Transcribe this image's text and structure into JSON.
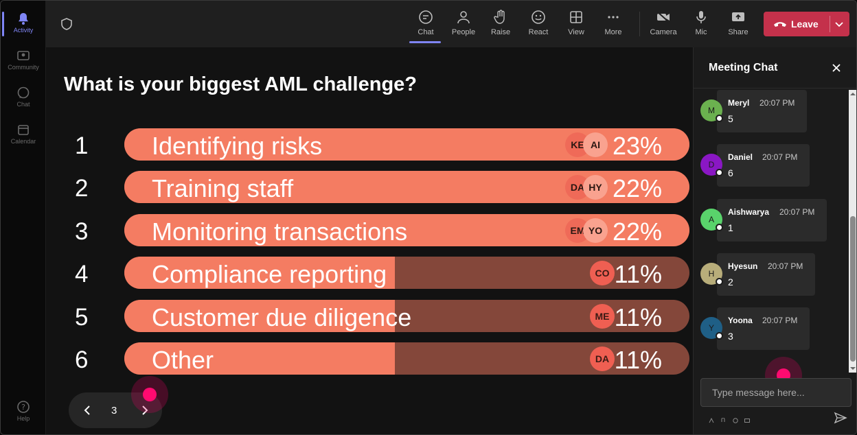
{
  "rail": {
    "items": [
      {
        "label": "Activity",
        "icon": "bell-icon",
        "active": true
      },
      {
        "label": "Community",
        "icon": "community-icon",
        "active": false
      },
      {
        "label": "Chat",
        "icon": "chat-icon",
        "active": false
      },
      {
        "label": "Calendar",
        "icon": "calendar-icon",
        "active": false
      }
    ],
    "help_label": "Help"
  },
  "topbar": {
    "chat": "Chat",
    "people": "People",
    "raise": "Raise",
    "react": "React",
    "view": "View",
    "more": "More",
    "camera": "Camera",
    "mic": "Mic",
    "share": "Share",
    "leave": "Leave"
  },
  "poll": {
    "question": "What is your biggest AML challenge?",
    "options": [
      {
        "num": "1",
        "label": "Identifying risks",
        "percent_text": "23%",
        "percent": 23,
        "avatars": [
          "KE",
          "AI"
        ]
      },
      {
        "num": "2",
        "label": "Training staff",
        "percent_text": "22%",
        "percent": 22,
        "avatars": [
          "DA",
          "HY"
        ]
      },
      {
        "num": "3",
        "label": "Monitoring transactions",
        "percent_text": "22%",
        "percent": 22,
        "avatars": [
          "EM",
          "YO"
        ]
      },
      {
        "num": "4",
        "label": "Compliance reporting",
        "percent_text": "11%",
        "percent": 11,
        "avatars": [
          "CO"
        ]
      },
      {
        "num": "5",
        "label": "Customer due diligence",
        "percent_text": "11%",
        "percent": 11,
        "avatars": [
          "ME"
        ]
      },
      {
        "num": "6",
        "label": "Other",
        "percent_text": "11%",
        "percent": 11,
        "avatars": [
          "DA"
        ]
      }
    ],
    "page": "3"
  },
  "chat": {
    "title": "Meeting Chat",
    "messages": [
      {
        "initial": "M",
        "name": "Meryl",
        "time": "20:07 PM",
        "text": "5",
        "color": "#6bb14f"
      },
      {
        "initial": "D",
        "name": "Daniel",
        "time": "20:07 PM",
        "text": "6",
        "color": "#8a17c4"
      },
      {
        "initial": "A",
        "name": "Aishwarya",
        "time": "20:07 PM",
        "text": "1",
        "color": "#59d36b"
      },
      {
        "initial": "H",
        "name": "Hyesun",
        "time": "20:07 PM",
        "text": "2",
        "color": "#b8ad7a"
      },
      {
        "initial": "Y",
        "name": "Yoona",
        "time": "20:07 PM",
        "text": "3",
        "color": "#1f5f86"
      }
    ],
    "placeholder": "Type message here..."
  },
  "colors": {
    "bar_fill": "#f47c62",
    "bar_track": "#84473a",
    "leave": "#c4314b",
    "accent": "#7f85f5"
  }
}
